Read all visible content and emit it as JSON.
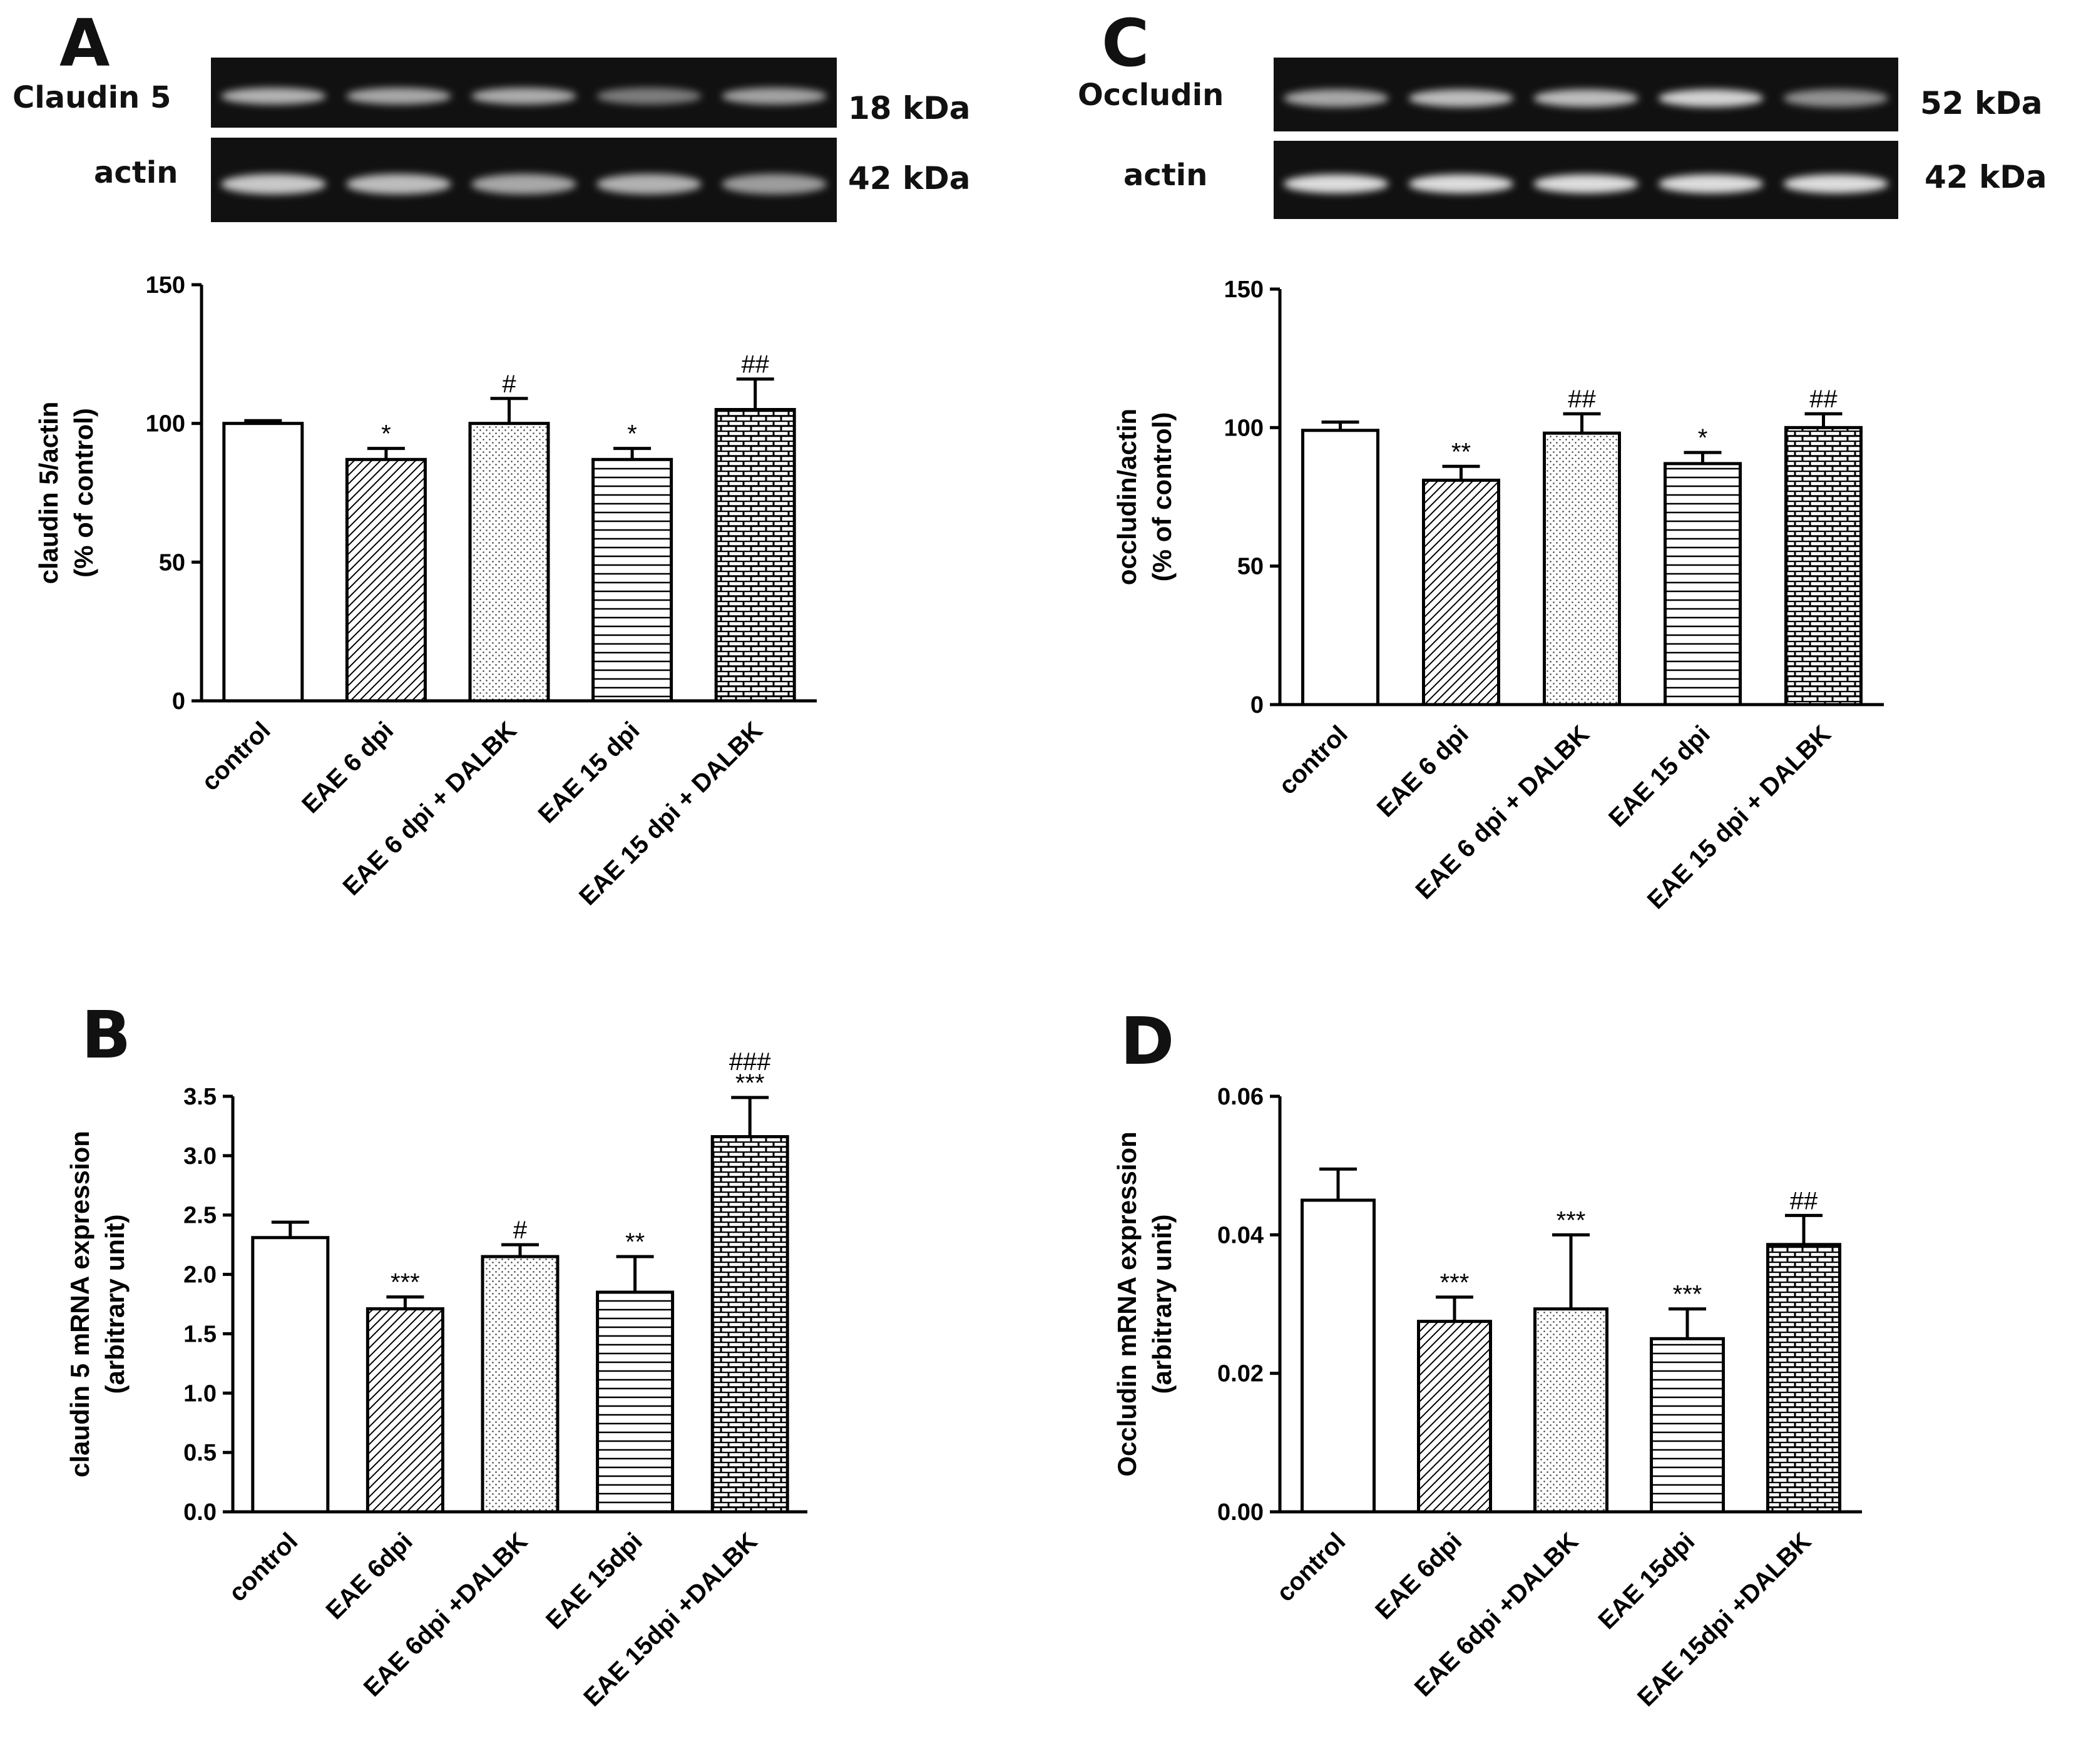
{
  "colors": {
    "bar_stroke": "#000000",
    "bar_fill": "#ffffff",
    "blot_background": "#111111",
    "blot_band": "#e8e8e8"
  },
  "blots": [
    {
      "panel": "A",
      "rows": [
        {
          "label": "Claudin 5",
          "kda": "18 kDa",
          "band_intensity": [
            0.75,
            0.7,
            0.72,
            0.5,
            0.68
          ]
        },
        {
          "label": "actin",
          "kda": "42 kDa",
          "band_intensity": [
            0.85,
            0.8,
            0.7,
            0.75,
            0.65
          ]
        }
      ]
    },
    {
      "panel": "C",
      "rows": [
        {
          "label": "Occludin",
          "kda": "52 kDa",
          "band_intensity": [
            0.7,
            0.8,
            0.8,
            0.9,
            0.6
          ]
        },
        {
          "label": "actin",
          "kda": "42 kDa",
          "band_intensity": [
            0.95,
            0.95,
            0.95,
            0.95,
            0.95
          ]
        }
      ]
    }
  ],
  "chart_data": [
    {
      "panel": "A",
      "type": "bar",
      "ylabel_lines": [
        "claudin 5/actin",
        "(% of control)"
      ],
      "ylim": [
        0,
        150
      ],
      "yticks": [
        "0",
        "50",
        "100",
        "150"
      ],
      "categories": [
        "control",
        "EAE 6 dpi",
        "EAE 6 dpi + DALBK",
        "EAE 15 dpi",
        "EAE 15 dpi + DALBK"
      ],
      "values": [
        100,
        87,
        100,
        87,
        105
      ],
      "errors": [
        1,
        4,
        9,
        4,
        11
      ],
      "patterns": [
        "none",
        "diag",
        "dots",
        "hlines",
        "brick"
      ],
      "annotations": [
        [],
        [
          "*"
        ],
        [
          "#"
        ],
        [
          "*"
        ],
        [
          "##"
        ]
      ]
    },
    {
      "panel": "B",
      "type": "bar",
      "ylabel_lines": [
        "claudin 5 mRNA expression",
        "(arbitrary unit)"
      ],
      "ylim": [
        0,
        3.5
      ],
      "yticks": [
        "0.0",
        "0.5",
        "1.0",
        "1.5",
        "2.0",
        "2.5",
        "3.0",
        "3.5"
      ],
      "categories": [
        "control",
        "EAE 6dpi",
        "EAE 6dpi +DALBK",
        "EAE 15dpi",
        "EAE 15dpi +DALBK"
      ],
      "values": [
        2.31,
        1.71,
        2.15,
        1.85,
        3.16
      ],
      "errors": [
        0.13,
        0.1,
        0.1,
        0.3,
        0.33
      ],
      "patterns": [
        "none",
        "diag",
        "dots",
        "hlines",
        "brick"
      ],
      "annotations": [
        [],
        [
          "***"
        ],
        [
          "#"
        ],
        [
          "**"
        ],
        [
          "***",
          "###"
        ]
      ]
    },
    {
      "panel": "C",
      "type": "bar",
      "ylabel_lines": [
        "occludin/actin",
        "(% of control)"
      ],
      "ylim": [
        0,
        150
      ],
      "yticks": [
        "0",
        "50",
        "100",
        "150"
      ],
      "categories": [
        "control",
        "EAE 6 dpi",
        "EAE 6 dpi + DALBK",
        "EAE 15 dpi",
        "EAE 15 dpi + DALBK"
      ],
      "values": [
        99,
        81,
        98,
        87,
        100
      ],
      "errors": [
        3,
        5,
        7,
        4,
        5
      ],
      "patterns": [
        "none",
        "diag",
        "dots",
        "hlines",
        "brick"
      ],
      "annotations": [
        [],
        [
          "**"
        ],
        [
          "##"
        ],
        [
          "*"
        ],
        [
          "##"
        ]
      ]
    },
    {
      "panel": "D",
      "type": "bar",
      "ylabel_lines": [
        "Occludin mRNA expression",
        "(arbitrary unit)"
      ],
      "ylim": [
        0,
        0.06
      ],
      "yticks": [
        "0.00",
        "0.02",
        "0.04",
        "0.06"
      ],
      "categories": [
        "control",
        "EAE 6dpi",
        "EAE 6dpi +DALBK",
        "EAE 15dpi",
        "EAE 15dpi +DALBK"
      ],
      "values": [
        0.045,
        0.0275,
        0.0293,
        0.025,
        0.0386
      ],
      "errors": [
        0.0045,
        0.0035,
        0.0107,
        0.0043,
        0.0042
      ],
      "patterns": [
        "none",
        "diag",
        "dots",
        "hlines",
        "brick"
      ],
      "annotations": [
        [],
        [
          "***"
        ],
        [
          "***"
        ],
        [
          "***"
        ],
        [
          "##"
        ]
      ]
    }
  ]
}
